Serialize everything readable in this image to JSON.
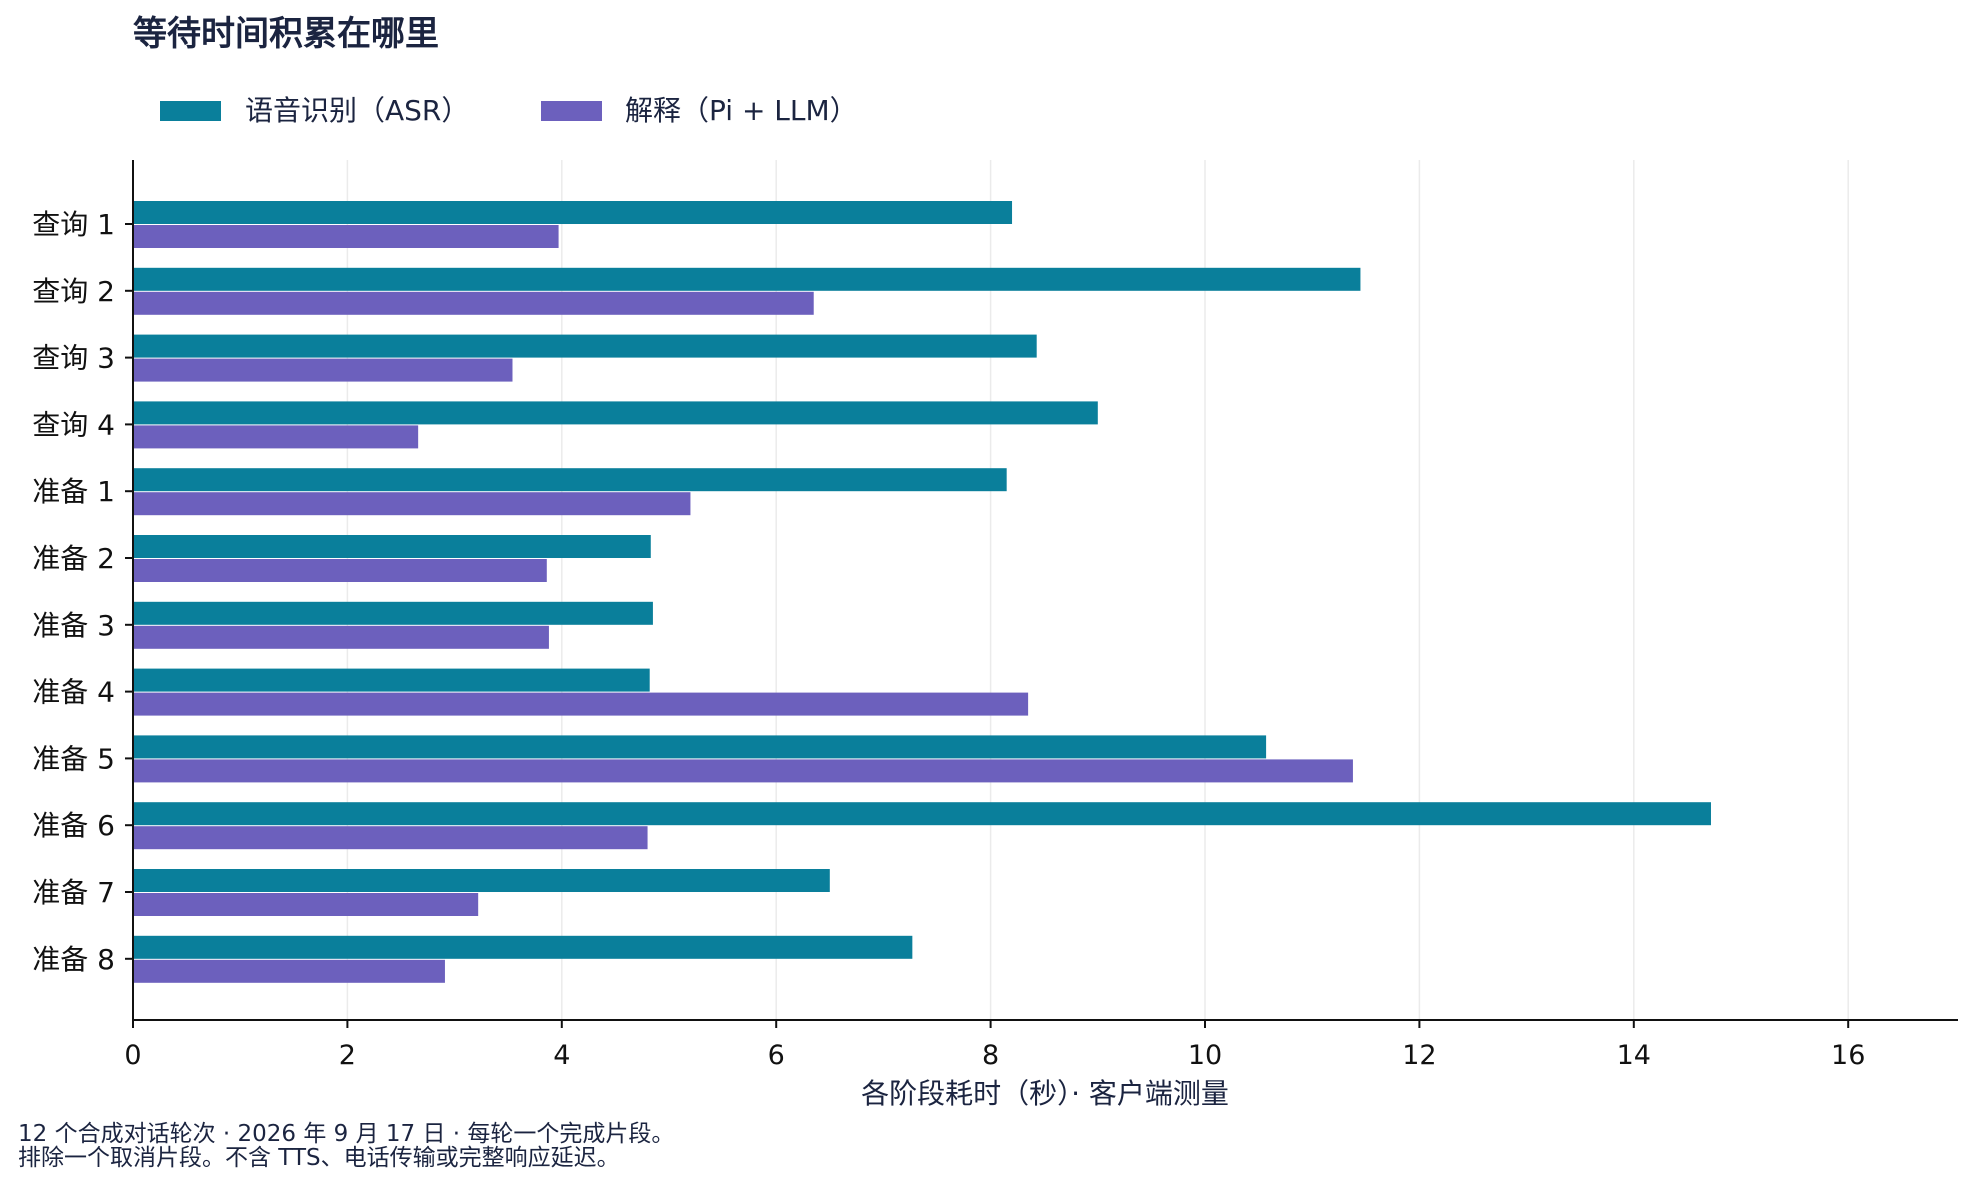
{
  "chart_data": {
    "type": "bar",
    "orientation": "horizontal",
    "title": "等待时间积累在哪里",
    "xlabel": "各阶段耗时（秒）· 客户端测量",
    "ylabel": "",
    "xlim": [
      0,
      17
    ],
    "xticks": [
      0,
      2,
      4,
      6,
      8,
      10,
      12,
      14,
      16
    ],
    "grid": "vertical",
    "legend_position": "top-left",
    "categories": [
      "查询 1",
      "查询 2",
      "查询 3",
      "查询 4",
      "准备 1",
      "准备 2",
      "准备 3",
      "准备 4",
      "准备 5",
      "准备 6",
      "准备 7",
      "准备 8"
    ],
    "series": [
      {
        "name": "语音识别（ASR）",
        "color": "#0a7f9b",
        "values": [
          8.2,
          11.45,
          8.43,
          9.0,
          8.15,
          4.83,
          4.85,
          4.82,
          10.57,
          14.72,
          6.5,
          7.27
        ]
      },
      {
        "name": "解释（Pi + LLM）",
        "color": "#6c60bd",
        "values": [
          3.97,
          6.35,
          3.54,
          2.66,
          5.2,
          3.86,
          3.88,
          8.35,
          11.38,
          4.8,
          3.22,
          2.91
        ]
      }
    ]
  },
  "notes": {
    "line1": "12 个合成对话轮次 · 2026 年 9 月 17 日 · 每轮一个完成片段。",
    "line2": "排除一个取消片段。不含 TTS、电话传输或完整响应延迟。"
  }
}
